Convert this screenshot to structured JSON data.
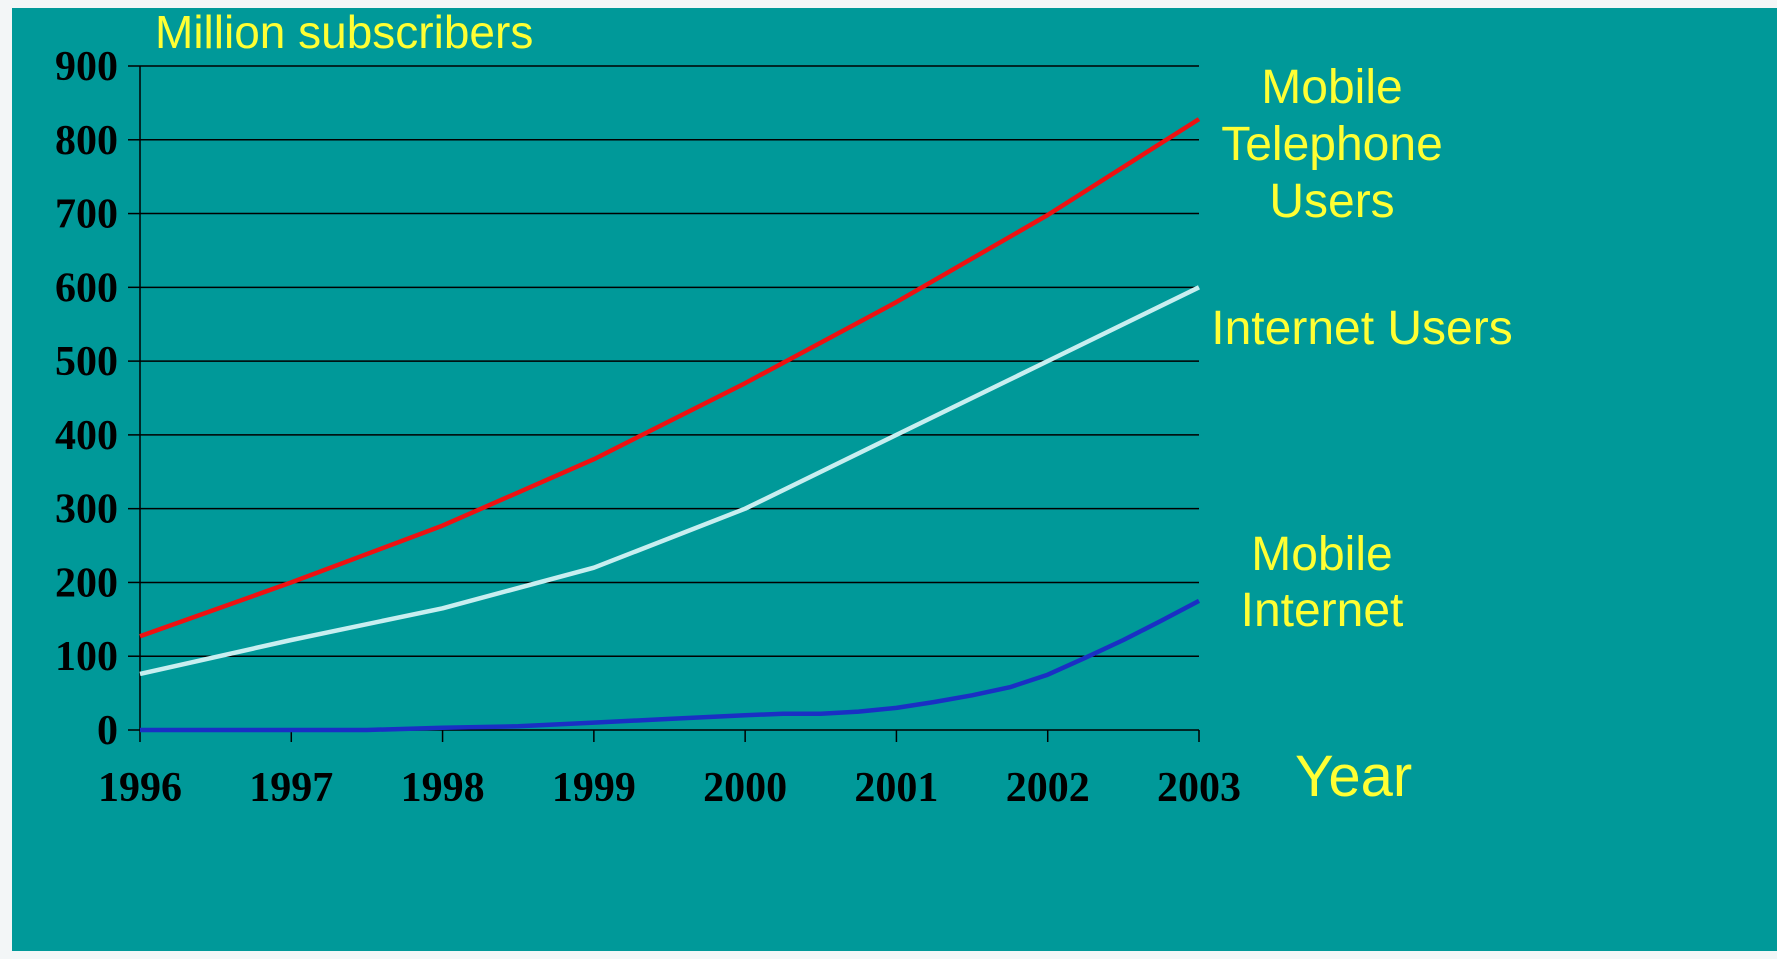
{
  "chart_data": {
    "type": "line",
    "title": "",
    "ylabel": "Million subscribers",
    "xlabel": "Year",
    "ylim": [
      0,
      900
    ],
    "yticks": [
      "0",
      "100",
      "200",
      "300",
      "400",
      "500",
      "600",
      "700",
      "800",
      "900"
    ],
    "xlim": [
      1996,
      2003
    ],
    "xticks": [
      "1996",
      "1997",
      "1998",
      "1999",
      "2000",
      "2001",
      "2002",
      "2003"
    ],
    "grid": true,
    "series": [
      {
        "name_lines": [
          "Mobile",
          "Telephone",
          "Users"
        ],
        "color": "#ee1111",
        "points": [
          [
            1996,
            127
          ],
          [
            1997,
            200
          ],
          [
            1998,
            277
          ],
          [
            1999,
            367
          ],
          [
            2000,
            470
          ],
          [
            2001,
            580
          ],
          [
            2002,
            698
          ],
          [
            2003,
            828
          ]
        ]
      },
      {
        "name_lines": [
          "Internet Users"
        ],
        "color": "#c8eef0",
        "points": [
          [
            1996,
            76
          ],
          [
            1997,
            122
          ],
          [
            1998,
            165
          ],
          [
            1999,
            220
          ],
          [
            2000,
            300
          ],
          [
            2001,
            400
          ],
          [
            2002,
            500
          ],
          [
            2003,
            600
          ]
        ]
      },
      {
        "name_lines": [
          "Mobile",
          "Internet"
        ],
        "color": "#1a2fc4",
        "points": [
          [
            1996,
            0
          ],
          [
            1997,
            0
          ],
          [
            1997.5,
            0
          ],
          [
            1998,
            3
          ],
          [
            1998.5,
            5
          ],
          [
            1999,
            10
          ],
          [
            1999.5,
            15
          ],
          [
            2000,
            20
          ],
          [
            2000.25,
            22
          ],
          [
            2000.5,
            22
          ],
          [
            2000.75,
            25
          ],
          [
            2001,
            30
          ],
          [
            2001.25,
            38
          ],
          [
            2001.5,
            47
          ],
          [
            2001.75,
            58
          ],
          [
            2002,
            75
          ],
          [
            2002.25,
            98
          ],
          [
            2002.5,
            122
          ],
          [
            2002.75,
            148
          ],
          [
            2003,
            175
          ]
        ]
      }
    ]
  },
  "colors": {
    "background": "#009999",
    "label_text": "#ffff33",
    "gridline": "#000000"
  }
}
